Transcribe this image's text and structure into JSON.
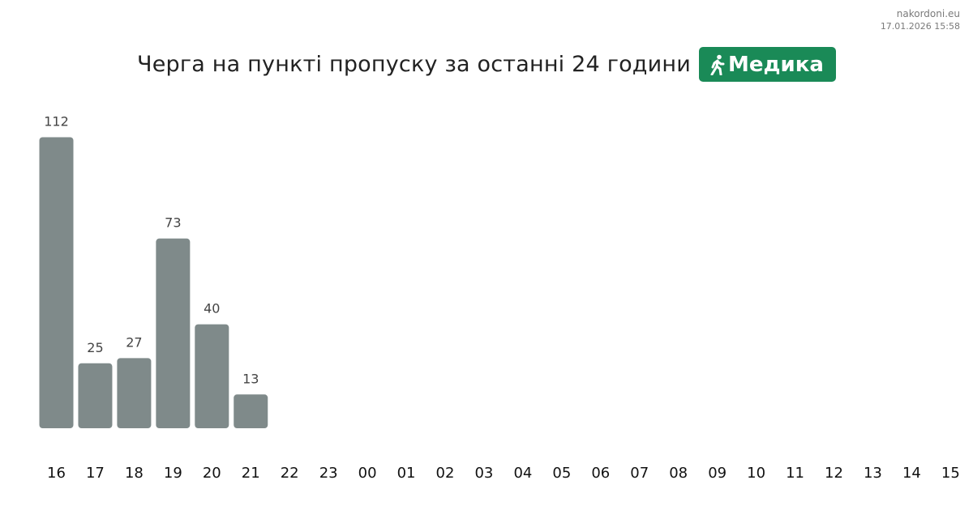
{
  "header": {
    "site": "nakordoni.eu",
    "timestamp": "17.01.2026 15:58"
  },
  "title": {
    "text": "Черга на пункті пропуску за останні 24 години",
    "badge_label": "Медика",
    "badge_icon": "pedestrian-icon"
  },
  "colors": {
    "bar": "#7f8a8a",
    "badge": "#1a8a57"
  },
  "chart_data": {
    "type": "bar",
    "categories": [
      "16",
      "17",
      "18",
      "19",
      "20",
      "21",
      "22",
      "23",
      "00",
      "01",
      "02",
      "03",
      "04",
      "05",
      "06",
      "07",
      "08",
      "09",
      "10",
      "11",
      "12",
      "13",
      "14",
      "15"
    ],
    "values": [
      112,
      25,
      27,
      73,
      40,
      13,
      null,
      null,
      null,
      null,
      null,
      null,
      null,
      null,
      null,
      null,
      null,
      null,
      null,
      null,
      null,
      null,
      null,
      null
    ],
    "title": "Черга на пункті пропуску за останні 24 години",
    "xlabel": "",
    "ylabel": "",
    "grid": false,
    "legend": "none"
  }
}
